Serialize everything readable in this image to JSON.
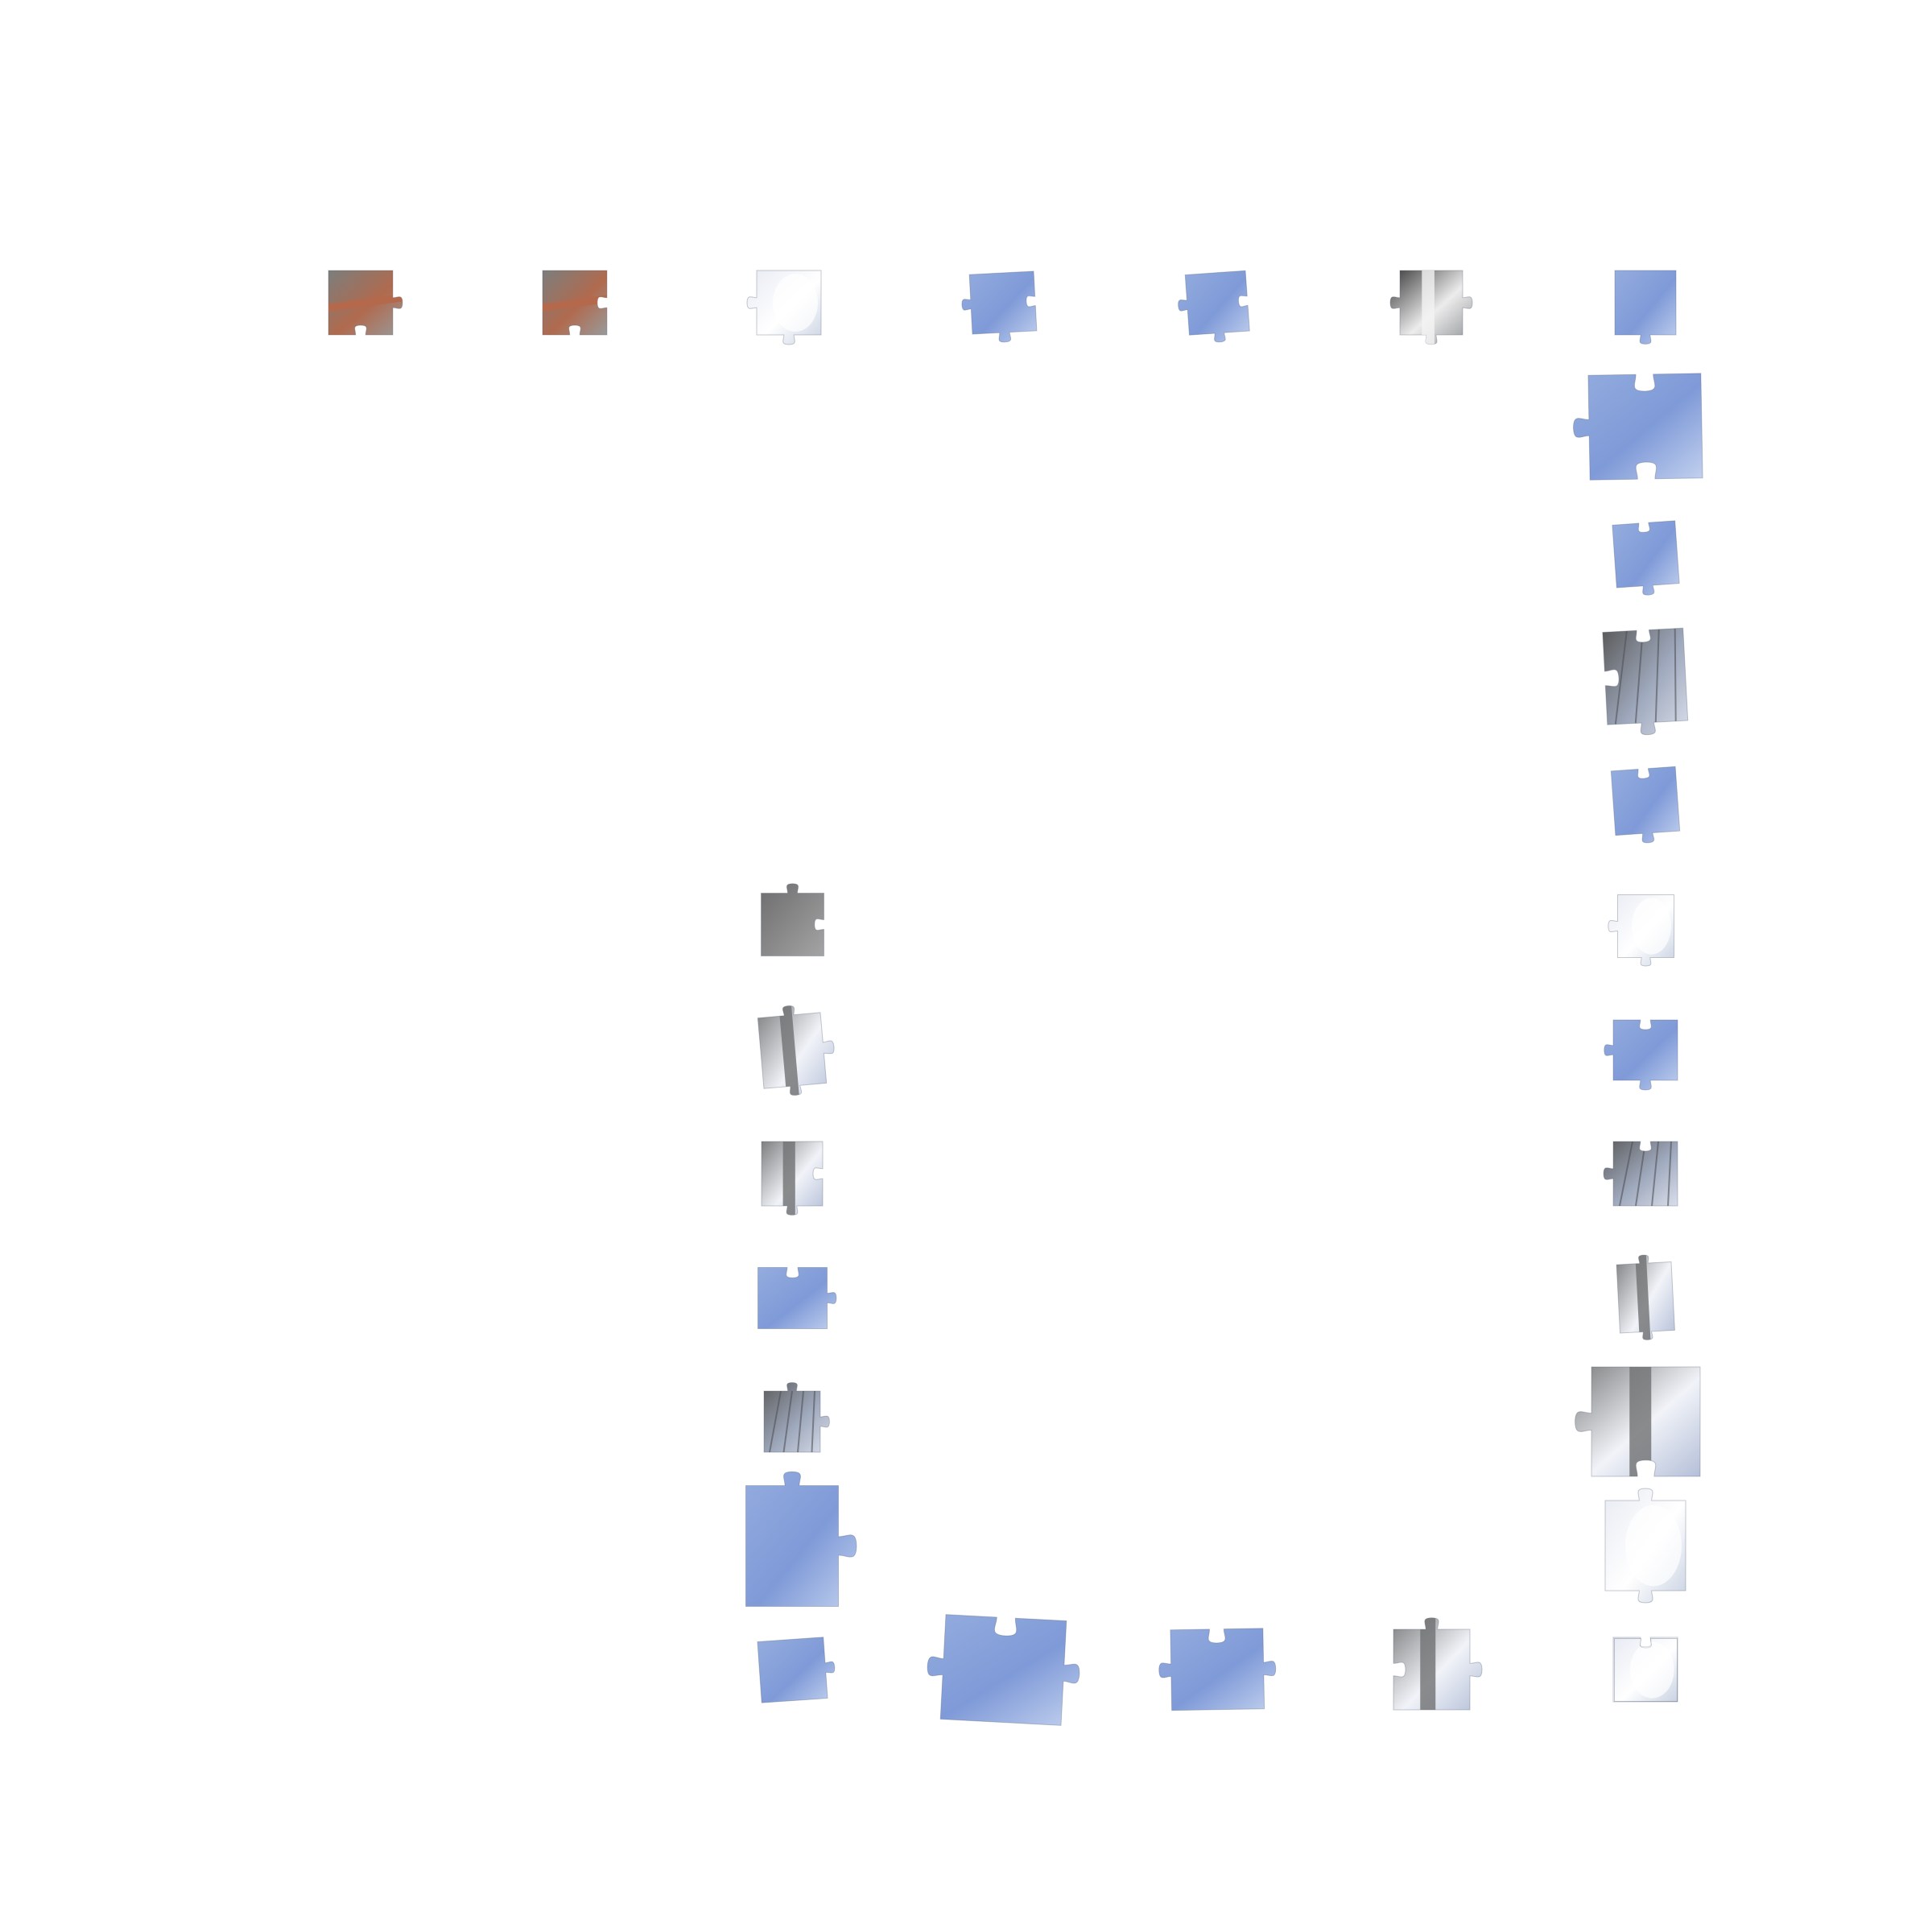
{
  "palette": {
    "sky": [
      "#94acde",
      "#7f9ad8",
      "#c1d0ee"
    ],
    "concrete": [
      "#6d6d6d",
      "#8a8b8a",
      "#a3a4a3"
    ],
    "snow": [
      "#e8ebf3",
      "#ffffff",
      "#c9d2e2"
    ],
    "branch": [
      "#5c5c5c",
      "#9fa9bd",
      "#d9deea"
    ],
    "brick": [
      "#7b7e7d",
      "#b06a4e",
      "#999a9b"
    ],
    "sign": [
      "#3a3a3a",
      "#ececec",
      "#8d8f92"
    ],
    "mixed": [
      "#7e7f80",
      "#f1f3f8",
      "#b4bfd8"
    ]
  },
  "pieces": [
    {
      "name": "piece-top-1",
      "tex": "brick",
      "tabs": {
        "t": 0,
        "r": 1,
        "b": -1,
        "l": 0
      }
    },
    {
      "name": "piece-top-2",
      "tex": "brick",
      "tabs": {
        "t": 0,
        "r": -1,
        "b": -1,
        "l": 0
      }
    },
    {
      "name": "piece-top-3",
      "tex": "snow",
      "tabs": {
        "t": 0,
        "r": 0,
        "b": 1,
        "l": 1
      }
    },
    {
      "name": "piece-top-4",
      "tex": "sky",
      "tabs": {
        "t": 0,
        "r": -1,
        "b": 1,
        "l": 1
      }
    },
    {
      "name": "piece-top-5",
      "tex": "sky",
      "tabs": {
        "t": 0,
        "r": -1,
        "b": 1,
        "l": 1
      }
    },
    {
      "name": "piece-top-6",
      "tex": "sign",
      "tabs": {
        "t": 0,
        "r": 1,
        "b": 1,
        "l": 1
      }
    },
    {
      "name": "piece-top-7",
      "tex": "sky",
      "tabs": {
        "t": 0,
        "r": 0,
        "b": 1,
        "l": 0
      }
    },
    {
      "name": "piece-right-1",
      "tex": "sky",
      "tabs": {
        "t": -1,
        "r": 0,
        "b": -1,
        "l": 1
      }
    },
    {
      "name": "piece-right-2",
      "tex": "sky",
      "tabs": {
        "t": -1,
        "r": 0,
        "b": 1,
        "l": 0
      }
    },
    {
      "name": "piece-right-3",
      "tex": "branch",
      "tabs": {
        "t": -1,
        "r": 0,
        "b": 1,
        "l": -1
      }
    },
    {
      "name": "piece-right-4",
      "tex": "sky",
      "tabs": {
        "t": -1,
        "r": 0,
        "b": 1,
        "l": 0
      }
    },
    {
      "name": "piece-right-5",
      "tex": "snow",
      "tabs": {
        "t": 0,
        "r": 0,
        "b": 1,
        "l": 1
      }
    },
    {
      "name": "piece-right-6",
      "tex": "sky",
      "tabs": {
        "t": -1,
        "r": 0,
        "b": 1,
        "l": 1
      }
    },
    {
      "name": "piece-right-7",
      "tex": "branch",
      "tabs": {
        "t": -1,
        "r": 0,
        "b": 0,
        "l": 1
      }
    },
    {
      "name": "piece-right-8",
      "tex": "mixed",
      "tabs": {
        "t": 1,
        "r": 0,
        "b": 1,
        "l": 0
      }
    },
    {
      "name": "piece-right-9",
      "tex": "mixed",
      "tabs": {
        "t": 0,
        "r": 0,
        "b": -1,
        "l": 1
      }
    },
    {
      "name": "piece-right-10",
      "tex": "snow",
      "tabs": {
        "t": 1,
        "r": 0,
        "b": 1,
        "l": 0
      }
    },
    {
      "name": "piece-right-11",
      "tex": "snow",
      "tabs": {
        "t": -1,
        "r": 0,
        "b": 0,
        "l": 0
      }
    },
    {
      "name": "piece-left-1",
      "tex": "concrete",
      "tabs": {
        "t": 1,
        "r": -1,
        "b": 0,
        "l": 0
      }
    },
    {
      "name": "piece-left-2",
      "tex": "mixed",
      "tabs": {
        "t": 1,
        "r": 1,
        "b": 1,
        "l": 0
      }
    },
    {
      "name": "piece-left-3",
      "tex": "mixed",
      "tabs": {
        "t": 0,
        "r": -1,
        "b": 1,
        "l": 0
      }
    },
    {
      "name": "piece-left-4",
      "tex": "sky",
      "tabs": {
        "t": -1,
        "r": 1,
        "b": 0,
        "l": 0
      }
    },
    {
      "name": "piece-left-5",
      "tex": "branch",
      "tabs": {
        "t": 1,
        "r": 1,
        "b": 0,
        "l": 0
      }
    },
    {
      "name": "piece-left-6",
      "tex": "sky",
      "tabs": {
        "t": 1,
        "r": 1,
        "b": 0,
        "l": 0
      }
    },
    {
      "name": "piece-bottom-1",
      "tex": "sky",
      "tabs": {
        "t": 0,
        "r": 1,
        "b": 0,
        "l": 0
      }
    },
    {
      "name": "piece-bottom-2",
      "tex": "sky",
      "tabs": {
        "t": -1,
        "r": 1,
        "b": 0,
        "l": 1
      }
    },
    {
      "name": "piece-bottom-3",
      "tex": "sky",
      "tabs": {
        "t": -1,
        "r": 1,
        "b": 0,
        "l": 1
      }
    },
    {
      "name": "piece-bottom-4",
      "tex": "mixed",
      "tabs": {
        "t": 1,
        "r": 1,
        "b": 0,
        "l": -1
      }
    },
    {
      "name": "piece-bottom-5",
      "tex": "snow",
      "tabs": {
        "t": -1,
        "r": 0,
        "b": 0,
        "l": 0
      }
    }
  ]
}
